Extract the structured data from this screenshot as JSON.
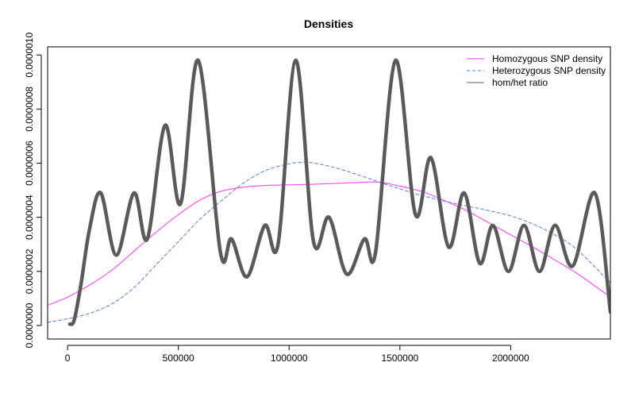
{
  "chart_data": {
    "type": "line",
    "title": "Densities",
    "xlabel": "",
    "ylabel": "",
    "xlim": [
      -90000,
      2450000
    ],
    "ylim": [
      -5e-08,
      1.03e-06
    ],
    "x_ticks": [
      0,
      500000,
      1000000,
      1500000,
      2000000
    ],
    "x_tick_labels": [
      "0",
      "500000",
      "1000000",
      "1500000",
      "2000000"
    ],
    "y_ticks": [
      0,
      2e-07,
      4e-07,
      6e-07,
      8e-07,
      1e-06
    ],
    "y_tick_labels": [
      "0.0000000",
      "0.0000002",
      "0.0000004",
      "0.0000006",
      "0.0000008",
      "0.0000010"
    ],
    "grid": false,
    "legend_position": "top-right",
    "series": [
      {
        "name": "Homozygous SNP density",
        "color": "#ff33ff",
        "style": "solid",
        "x": [
          -90000,
          0,
          100000,
          200000,
          300000,
          400000,
          500000,
          600000,
          700000,
          800000,
          900000,
          1000000,
          1100000,
          1200000,
          1300000,
          1400000,
          1500000,
          1600000,
          1700000,
          1800000,
          1900000,
          2000000,
          2100000,
          2200000,
          2300000,
          2450000
        ],
        "values": [
          7.5e-08,
          1.05e-07,
          1.5e-07,
          2.05e-07,
          2.75e-07,
          3.45e-07,
          4.1e-07,
          4.65e-07,
          4.98e-07,
          5.12e-07,
          5.18e-07,
          5.2e-07,
          5.22e-07,
          5.25e-07,
          5.28e-07,
          5.3e-07,
          5.15e-07,
          4.95e-07,
          4.62e-07,
          4.25e-07,
          3.8e-07,
          3.35e-07,
          2.9e-07,
          2.42e-07,
          1.92e-07,
          1.05e-07
        ]
      },
      {
        "name": "Heterozygous SNP density",
        "color": "#5b7ccf",
        "style": "dashed",
        "x": [
          -90000,
          0,
          100000,
          200000,
          300000,
          400000,
          500000,
          600000,
          700000,
          800000,
          900000,
          1000000,
          1050000,
          1100000,
          1200000,
          1300000,
          1400000,
          1500000,
          1600000,
          1700000,
          1800000,
          1900000,
          2000000,
          2100000,
          2200000,
          2300000,
          2450000
        ],
        "values": [
          1.2e-08,
          2.5e-08,
          4.5e-08,
          8e-08,
          1.4e-07,
          2.25e-07,
          3.1e-07,
          3.95e-07,
          4.65e-07,
          5.3e-07,
          5.75e-07,
          5.98e-07,
          6.03e-07,
          6.02e-07,
          5.85e-07,
          5.6e-07,
          5.32e-07,
          5.05e-07,
          4.8e-07,
          4.6e-07,
          4.42e-07,
          4.25e-07,
          4.05e-07,
          3.75e-07,
          3.35e-07,
          2.8e-07,
          1.58e-07
        ]
      },
      {
        "name": "hom/het ratio",
        "color": "#5a5a5a",
        "style": "solid-thick",
        "x": [
          10000,
          30000,
          60000,
          100000,
          150000,
          220000,
          300000,
          360000,
          440000,
          510000,
          590000,
          690000,
          740000,
          810000,
          890000,
          950000,
          1030000,
          1110000,
          1180000,
          1260000,
          1340000,
          1390000,
          1480000,
          1570000,
          1640000,
          1720000,
          1790000,
          1860000,
          1920000,
          1990000,
          2060000,
          2130000,
          2200000,
          2280000,
          2380000,
          2450000
        ],
        "values": [
          5e-09,
          2e-08,
          1.5e-07,
          3.6e-07,
          4.9e-07,
          2.6e-07,
          4.9e-07,
          3.2e-07,
          7.4e-07,
          4.5e-07,
          9.8e-07,
          2.7e-07,
          3.2e-07,
          1.8e-07,
          3.7e-07,
          3e-07,
          9.8e-07,
          3.1e-07,
          4e-07,
          1.9e-07,
          3.2e-07,
          2.7e-07,
          9.8e-07,
          4.1e-07,
          6.2e-07,
          2.9e-07,
          4.9e-07,
          2.3e-07,
          3.7e-07,
          2e-07,
          3.7e-07,
          2e-07,
          3.7e-07,
          2.2e-07,
          4.9e-07,
          5e-08
        ]
      }
    ]
  }
}
